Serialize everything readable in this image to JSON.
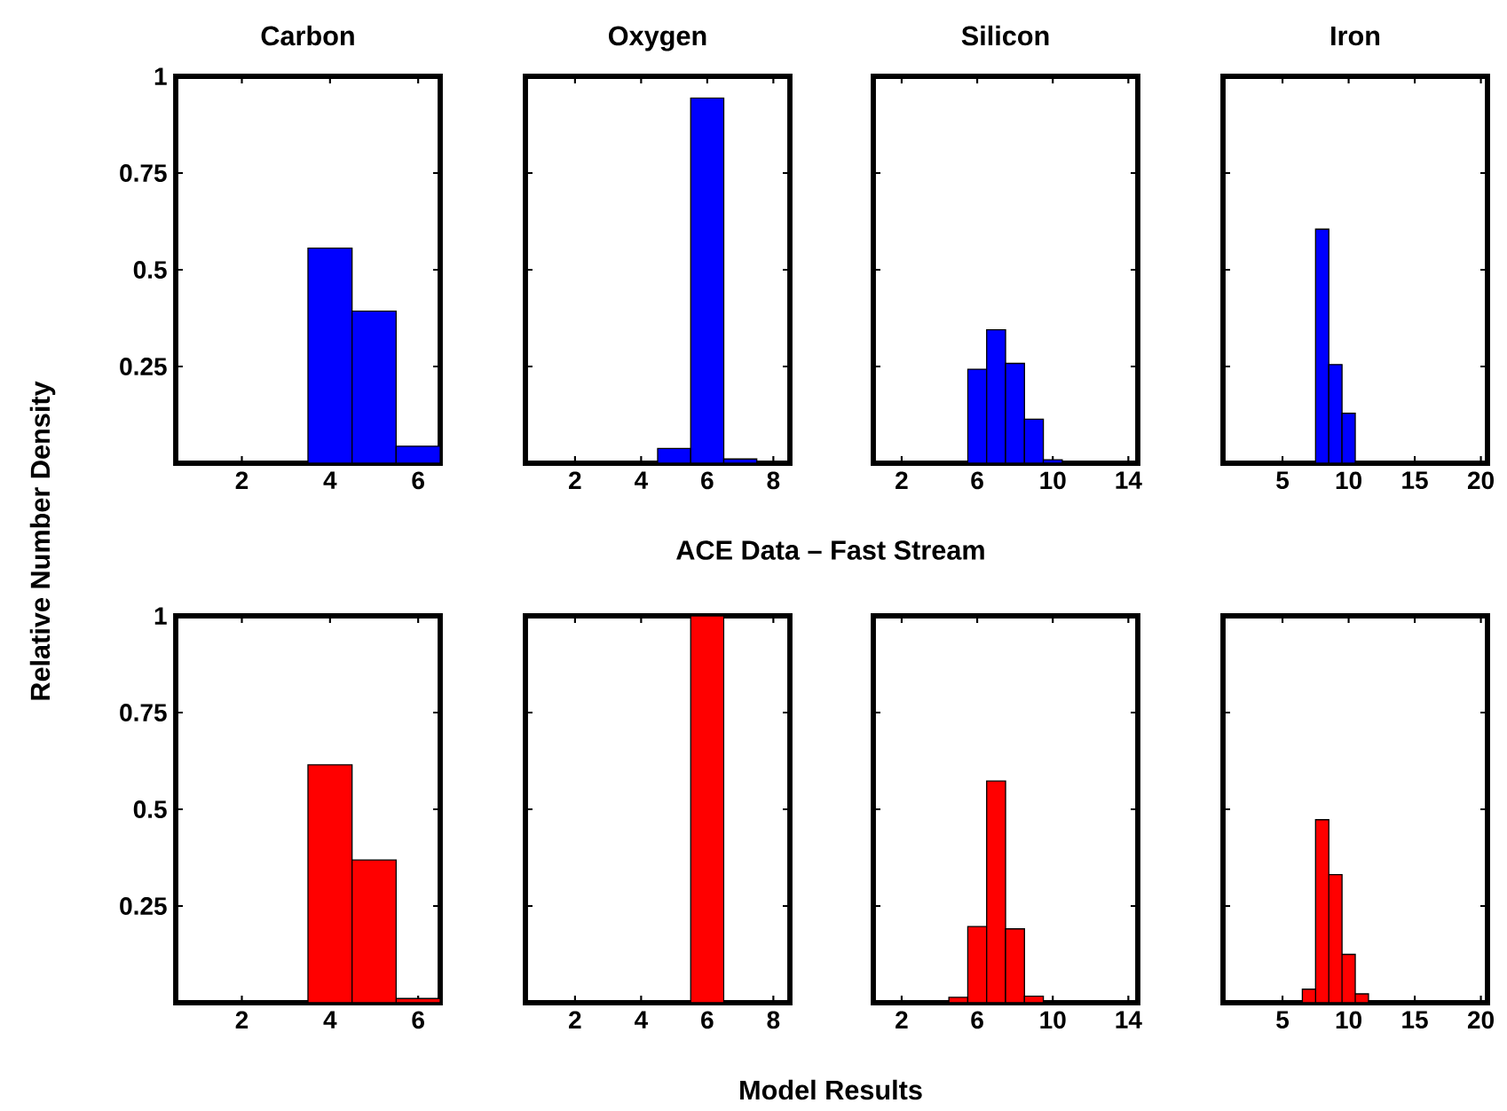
{
  "chart_data": [
    {
      "type": "bar",
      "title": "Carbon",
      "ylabel": "Relative Number Density",
      "annotations": [
        "ACE Data – Fast Stream"
      ],
      "x": [
        4,
        5,
        6
      ],
      "values": [
        0.556,
        0.393,
        0.044
      ],
      "color": "#0000ff",
      "xlim": [
        0.5,
        6.5
      ],
      "xticks": [
        2,
        4,
        6
      ],
      "ylim": [
        0,
        1
      ],
      "yticks": [
        0.25,
        0.5,
        0.75,
        1
      ]
    },
    {
      "type": "bar",
      "title": "Oxygen",
      "x": [
        5,
        6,
        7
      ],
      "values": [
        0.038,
        0.944,
        0.011
      ],
      "color": "#0000ff",
      "xlim": [
        0.5,
        8.5
      ],
      "xticks": [
        2,
        4,
        6,
        8
      ],
      "ylim": [
        0,
        1
      ],
      "yticks": [
        0.25,
        0.5,
        0.75,
        1
      ],
      "tick_labels": "x"
    },
    {
      "type": "bar",
      "title": "Silicon",
      "x": [
        6,
        7,
        8,
        9,
        10
      ],
      "values": [
        0.243,
        0.345,
        0.258,
        0.114,
        0.009
      ],
      "color": "#0000ff",
      "xlim": [
        0.5,
        14.5
      ],
      "xticks": [
        2,
        6,
        10,
        14
      ],
      "ylim": [
        0,
        1
      ],
      "yticks": [
        0.25,
        0.5,
        0.75,
        1
      ],
      "tick_labels": "x"
    },
    {
      "type": "bar",
      "title": "Iron",
      "x": [
        8,
        9,
        10
      ],
      "values": [
        0.605,
        0.255,
        0.129
      ],
      "color": "#0000ff",
      "xlim": [
        0.5,
        20.5
      ],
      "xticks": [
        5,
        10,
        15,
        20
      ],
      "ylim": [
        0,
        1
      ],
      "yticks": [
        0.25,
        0.5,
        0.75,
        1
      ],
      "tick_labels": "x"
    },
    {
      "type": "bar",
      "annotations": [
        "Model Results"
      ],
      "x": [
        4,
        5,
        6
      ],
      "values": [
        0.615,
        0.369,
        0.011
      ],
      "color": "#ff0000",
      "xlim": [
        0.5,
        6.5
      ],
      "xticks": [
        2,
        4,
        6
      ],
      "ylim": [
        0,
        1
      ],
      "yticks": [
        0.25,
        0.5,
        0.75,
        1
      ]
    },
    {
      "type": "bar",
      "x": [
        6
      ],
      "values": [
        1
      ],
      "color": "#ff0000",
      "xlim": [
        0.5,
        8.5
      ],
      "xticks": [
        2,
        4,
        6,
        8
      ],
      "ylim": [
        0,
        1
      ],
      "yticks": [
        0.25,
        0.5,
        0.75,
        1
      ],
      "tick_labels": "x"
    },
    {
      "type": "bar",
      "x": [
        5,
        6,
        7,
        8,
        9
      ],
      "values": [
        0.014,
        0.197,
        0.573,
        0.191,
        0.017
      ],
      "color": "#ff0000",
      "xlim": [
        0.5,
        14.5
      ],
      "xticks": [
        2,
        6,
        10,
        14
      ],
      "ylim": [
        0,
        1
      ],
      "yticks": [
        0.25,
        0.5,
        0.75,
        1
      ],
      "tick_labels": "x"
    },
    {
      "type": "bar",
      "x": [
        7,
        8,
        9,
        10,
        11
      ],
      "values": [
        0.035,
        0.473,
        0.331,
        0.125,
        0.023
      ],
      "color": "#ff0000",
      "xlim": [
        0.5,
        20.5
      ],
      "xticks": [
        5,
        10,
        15,
        20
      ],
      "ylim": [
        0,
        1
      ],
      "yticks": [
        0.25,
        0.5,
        0.75,
        1
      ],
      "tick_labels": "x"
    }
  ]
}
